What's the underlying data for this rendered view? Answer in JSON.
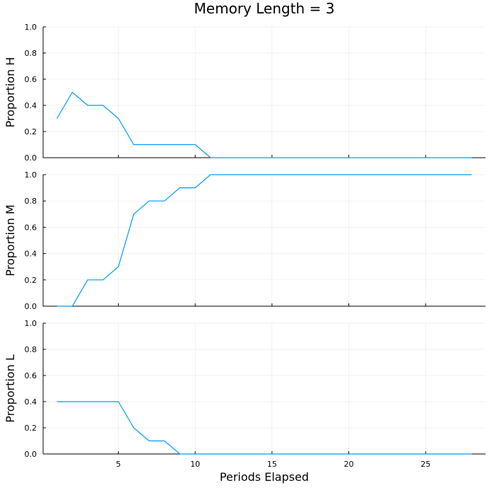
{
  "chart_data": {
    "type": "line",
    "title": "Memory Length = 3",
    "xlabel": "Periods Elapsed",
    "xlim": [
      0.1,
      28.9
    ],
    "x_ticks": [
      5,
      10,
      15,
      20,
      25
    ],
    "x_tick_labels": [
      "5",
      "10",
      "15",
      "20",
      "25"
    ],
    "grid": true,
    "legend": "none",
    "line_color": "#009AFA",
    "x": [
      1,
      2,
      3,
      4,
      5,
      6,
      7,
      8,
      9,
      10,
      11,
      12,
      13,
      14,
      15,
      16,
      17,
      18,
      19,
      20,
      21,
      22,
      23,
      24,
      25,
      26,
      27,
      28
    ],
    "panels": [
      {
        "ylabel": "Proportion H",
        "ylim": [
          0,
          1
        ],
        "y_ticks": [
          0,
          0.2,
          0.4,
          0.6,
          0.8,
          1.0
        ],
        "y_tick_labels": [
          "0.0",
          "0.2",
          "0.4",
          "0.6",
          "0.8",
          "1.0"
        ],
        "values": [
          0.3,
          0.5,
          0.4,
          0.4,
          0.3,
          0.1,
          0.1,
          0.1,
          0.1,
          0.1,
          0,
          0,
          0,
          0,
          0,
          0,
          0,
          0,
          0,
          0,
          0,
          0,
          0,
          0,
          0,
          0,
          0,
          0
        ]
      },
      {
        "ylabel": "Proportion M",
        "ylim": [
          0,
          1
        ],
        "y_ticks": [
          0,
          0.2,
          0.4,
          0.6,
          0.8,
          1.0
        ],
        "y_tick_labels": [
          "0.0",
          "0.2",
          "0.4",
          "0.6",
          "0.8",
          "1.0"
        ],
        "values": [
          0,
          0,
          0.2,
          0.2,
          0.3,
          0.7,
          0.8,
          0.8,
          0.9,
          0.9,
          1,
          1,
          1,
          1,
          1,
          1,
          1,
          1,
          1,
          1,
          1,
          1,
          1,
          1,
          1,
          1,
          1,
          1
        ]
      },
      {
        "ylabel": "Proportion L",
        "ylim": [
          0,
          1
        ],
        "y_ticks": [
          0,
          0.2,
          0.4,
          0.6,
          0.8,
          1.0
        ],
        "y_tick_labels": [
          "0.0",
          "0.2",
          "0.4",
          "0.6",
          "0.8",
          "1.0"
        ],
        "values": [
          0.4,
          0.4,
          0.4,
          0.4,
          0.4,
          0.2,
          0.1,
          0.1,
          0,
          0,
          0,
          0,
          0,
          0,
          0,
          0,
          0,
          0,
          0,
          0,
          0,
          0,
          0,
          0,
          0,
          0,
          0,
          0
        ]
      }
    ]
  }
}
